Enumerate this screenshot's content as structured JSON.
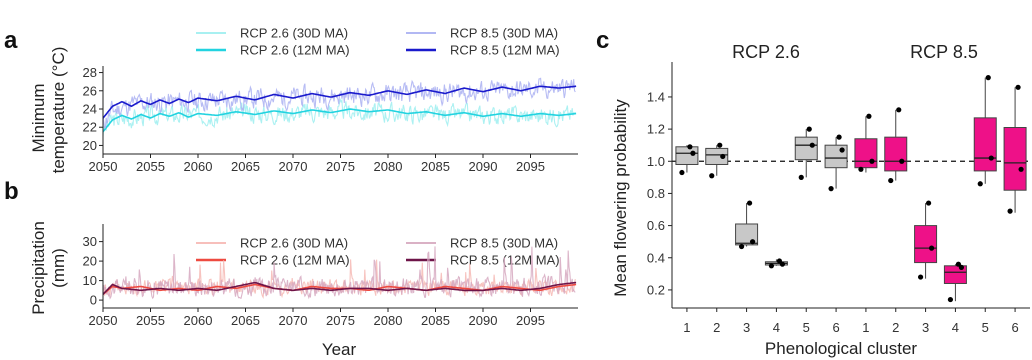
{
  "panel_labels": {
    "a": "a",
    "b": "b",
    "c": "c"
  },
  "colors": {
    "rcp26_temp_30d": "#9eeef0",
    "rcp26_temp_12m": "#22d3e0",
    "rcp85_temp_30d": "#aab0f2",
    "rcp85_temp_12m": "#1a1acc",
    "rcp26_prec_30d": "#f6b8b4",
    "rcp26_prec_12m": "#ee4a40",
    "rcp85_prec_30d": "#d6a8bf",
    "rcp85_prec_12m": "#6e1448",
    "box_rcp26": "#c8c8c8",
    "box_rcp85": "#ee1188"
  },
  "chart_data": [
    {
      "type": "line",
      "panel": "a",
      "ylabel": [
        "Minimum",
        "temperature (°C)"
      ],
      "xlim": [
        2050,
        2100
      ],
      "ylim": [
        19.5,
        28.5
      ],
      "xticks": [
        2050,
        2055,
        2060,
        2065,
        2070,
        2075,
        2080,
        2085,
        2090,
        2095
      ],
      "yticks": [
        20,
        22,
        24,
        26,
        28
      ],
      "legend": [
        "RCP 2.6 (30D MA)",
        "RCP 2.6 (12M MA)",
        "RCP 8.5 (30D MA)",
        "RCP 8.5 (12M MA)"
      ],
      "series": [
        {
          "name": "RCP 2.6 (30D MA)",
          "noisy": true,
          "amp": 2.0,
          "seed": 3,
          "x": [
            2050,
            2051,
            2053,
            2055,
            2060,
            2065,
            2070,
            2075,
            2080,
            2085,
            2090,
            2095,
            2099.8
          ],
          "y": [
            21.5,
            22.8,
            23.0,
            23.3,
            23.4,
            23.5,
            23.6,
            23.8,
            23.6,
            23.4,
            23.3,
            23.3,
            23.4
          ]
        },
        {
          "name": "RCP 2.6 (12M MA)",
          "noisy": false,
          "x": [
            2050,
            2051,
            2052,
            2053,
            2054,
            2055,
            2056,
            2057,
            2058,
            2059,
            2060,
            2062,
            2064,
            2066,
            2068,
            2070,
            2072,
            2074,
            2076,
            2078,
            2080,
            2082,
            2084,
            2086,
            2088,
            2090,
            2092,
            2094,
            2096,
            2098,
            2099.8
          ],
          "y": [
            21.5,
            22.8,
            23.3,
            22.9,
            23.4,
            23.0,
            23.5,
            23.2,
            23.6,
            23.1,
            23.5,
            23.3,
            23.7,
            23.4,
            23.8,
            23.5,
            23.9,
            23.6,
            24.0,
            23.7,
            23.9,
            23.5,
            23.7,
            23.3,
            23.6,
            23.2,
            23.5,
            23.2,
            23.5,
            23.3,
            23.5
          ]
        },
        {
          "name": "RCP 8.5 (30D MA)",
          "noisy": true,
          "amp": 2.2,
          "seed": 11,
          "x": [
            2050,
            2051,
            2053,
            2055,
            2060,
            2065,
            2070,
            2075,
            2080,
            2085,
            2090,
            2095,
            2099.8
          ],
          "y": [
            22.5,
            23.8,
            24.5,
            24.7,
            24.9,
            25.1,
            25.3,
            25.5,
            25.6,
            25.8,
            25.9,
            26.1,
            26.4
          ]
        },
        {
          "name": "RCP 8.5 (12M MA)",
          "noisy": false,
          "x": [
            2050,
            2051,
            2052,
            2053,
            2054,
            2055,
            2056,
            2057,
            2058,
            2059,
            2060,
            2062,
            2064,
            2066,
            2068,
            2070,
            2072,
            2074,
            2076,
            2078,
            2080,
            2082,
            2084,
            2086,
            2088,
            2090,
            2092,
            2094,
            2096,
            2098,
            2099.8
          ],
          "y": [
            23.0,
            24.3,
            24.8,
            24.3,
            24.9,
            24.5,
            25.0,
            24.6,
            25.1,
            24.7,
            25.2,
            24.9,
            25.4,
            25.0,
            25.6,
            25.2,
            25.7,
            25.3,
            25.8,
            25.5,
            26.0,
            25.6,
            26.1,
            25.7,
            26.3,
            25.9,
            26.4,
            26.0,
            26.5,
            26.3,
            26.5
          ]
        }
      ]
    },
    {
      "type": "line",
      "panel": "b",
      "ylabel": [
        "Precipitation",
        "(mm)"
      ],
      "xlabel": "Year",
      "xlim": [
        2050,
        2100
      ],
      "ylim": [
        -2,
        38
      ],
      "xticks": [
        2050,
        2055,
        2060,
        2065,
        2070,
        2075,
        2080,
        2085,
        2090,
        2095
      ],
      "yticks": [
        0,
        10,
        20,
        30
      ],
      "legend": [
        "RCP 2.6 (30D MA)",
        "RCP 2.6 (12M MA)",
        "RCP 8.5 (30D MA)",
        "RCP 8.5 (12M MA)"
      ],
      "series": [
        {
          "name": "RCP 2.6 (30D MA)",
          "noisy": true,
          "amp": 11,
          "seed": 5,
          "spiky": true,
          "x": [
            2050,
            2052,
            2060,
            2070,
            2080,
            2090,
            2099.8
          ],
          "y": [
            5,
            6,
            6,
            6,
            6,
            6,
            6
          ]
        },
        {
          "name": "RCP 8.5 (30D MA)",
          "noisy": true,
          "amp": 13,
          "seed": 17,
          "spiky": true,
          "x": [
            2050,
            2052,
            2060,
            2070,
            2080,
            2090,
            2099.8
          ],
          "y": [
            5,
            6,
            6,
            6,
            6,
            6,
            7
          ]
        },
        {
          "name": "RCP 2.6 (12M MA)",
          "noisy": false,
          "x": [
            2050,
            2051,
            2052,
            2054,
            2056,
            2058,
            2060,
            2062,
            2064,
            2066,
            2068,
            2070,
            2072,
            2074,
            2076,
            2078,
            2080,
            2082,
            2084,
            2086,
            2088,
            2090,
            2092,
            2094,
            2096,
            2098,
            2099.8
          ],
          "y": [
            3,
            7,
            6,
            7,
            5,
            6,
            5,
            7,
            6,
            8,
            6,
            5,
            7,
            6,
            6,
            5,
            7,
            6,
            5,
            7,
            6,
            5,
            7,
            6,
            5,
            7,
            8
          ]
        },
        {
          "name": "RCP 8.5 (12M MA)",
          "noisy": false,
          "x": [
            2050,
            2051,
            2052,
            2054,
            2056,
            2058,
            2060,
            2062,
            2064,
            2066,
            2068,
            2070,
            2072,
            2074,
            2076,
            2078,
            2080,
            2082,
            2084,
            2086,
            2088,
            2090,
            2092,
            2094,
            2096,
            2098,
            2099.8
          ],
          "y": [
            3,
            8,
            6,
            5,
            6,
            5,
            6,
            5,
            7,
            9,
            6,
            5,
            6,
            5,
            6,
            6,
            5,
            6,
            5,
            6,
            5,
            5,
            6,
            5,
            6,
            8,
            9
          ]
        }
      ]
    },
    {
      "type": "box",
      "panel": "c",
      "ylabel": "Mean flowering probability",
      "xlabel": "Phenological cluster",
      "groups": [
        "RCP 2.6",
        "RCP 8.5"
      ],
      "ylim": [
        0.1,
        1.58
      ],
      "yticks": [
        0.2,
        0.4,
        0.6,
        0.8,
        1.0,
        1.2,
        1.4
      ],
      "ytick_labels": [
        "0.2",
        "0.4",
        "0.6",
        "0.8",
        "1.0",
        "1.2",
        "1.4"
      ],
      "reference_line": 1.0,
      "boxes": [
        {
          "cluster": "1",
          "group": "RCP 2.6",
          "q1": 0.98,
          "median": 1.05,
          "q3": 1.09,
          "whisker_low": 0.93,
          "whisker_high": 1.1,
          "points": [
            0.93,
            1.05,
            1.09
          ]
        },
        {
          "cluster": "2",
          "group": "RCP 2.6",
          "q1": 0.98,
          "median": 1.04,
          "q3": 1.08,
          "whisker_low": 0.91,
          "whisker_high": 1.1,
          "points": [
            0.91,
            1.03,
            1.1
          ]
        },
        {
          "cluster": "3",
          "group": "RCP 2.6",
          "q1": 0.48,
          "median": 0.49,
          "q3": 0.61,
          "whisker_low": 0.47,
          "whisker_high": 0.74,
          "points": [
            0.47,
            0.5,
            0.74
          ]
        },
        {
          "cluster": "4",
          "group": "RCP 2.6",
          "q1": 0.355,
          "median": 0.365,
          "q3": 0.375,
          "whisker_low": 0.35,
          "whisker_high": 0.39,
          "points": [
            0.35,
            0.36,
            0.38
          ]
        },
        {
          "cluster": "5",
          "group": "RCP 2.6",
          "q1": 1.01,
          "median": 1.1,
          "q3": 1.15,
          "whisker_low": 0.9,
          "whisker_high": 1.2,
          "points": [
            0.9,
            1.1,
            1.2
          ]
        },
        {
          "cluster": "6",
          "group": "RCP 2.6",
          "q1": 0.96,
          "median": 1.02,
          "q3": 1.1,
          "whisker_low": 0.83,
          "whisker_high": 1.15,
          "points": [
            0.83,
            1.07,
            1.15
          ]
        },
        {
          "cluster": "1",
          "group": "RCP 8.5",
          "q1": 0.96,
          "median": 1.0,
          "q3": 1.14,
          "whisker_low": 0.93,
          "whisker_high": 1.28,
          "points": [
            0.95,
            1.0,
            1.28
          ]
        },
        {
          "cluster": "2",
          "group": "RCP 8.5",
          "q1": 0.94,
          "median": 1.0,
          "q3": 1.15,
          "whisker_low": 0.88,
          "whisker_high": 1.32,
          "points": [
            0.88,
            1.0,
            1.32
          ]
        },
        {
          "cluster": "3",
          "group": "RCP 8.5",
          "q1": 0.37,
          "median": 0.46,
          "q3": 0.6,
          "whisker_low": 0.27,
          "whisker_high": 0.74,
          "points": [
            0.28,
            0.46,
            0.74
          ]
        },
        {
          "cluster": "4",
          "group": "RCP 8.5",
          "q1": 0.24,
          "median": 0.31,
          "q3": 0.35,
          "whisker_low": 0.13,
          "whisker_high": 0.36,
          "points": [
            0.14,
            0.34,
            0.36
          ]
        },
        {
          "cluster": "5",
          "group": "RCP 8.5",
          "q1": 0.94,
          "median": 1.02,
          "q3": 1.27,
          "whisker_low": 0.86,
          "whisker_high": 1.52,
          "points": [
            0.86,
            1.02,
            1.52
          ]
        },
        {
          "cluster": "6",
          "group": "RCP 8.5",
          "q1": 0.82,
          "median": 0.99,
          "q3": 1.21,
          "whisker_low": 0.68,
          "whisker_high": 1.46,
          "points": [
            0.69,
            0.95,
            1.46
          ]
        }
      ]
    }
  ]
}
